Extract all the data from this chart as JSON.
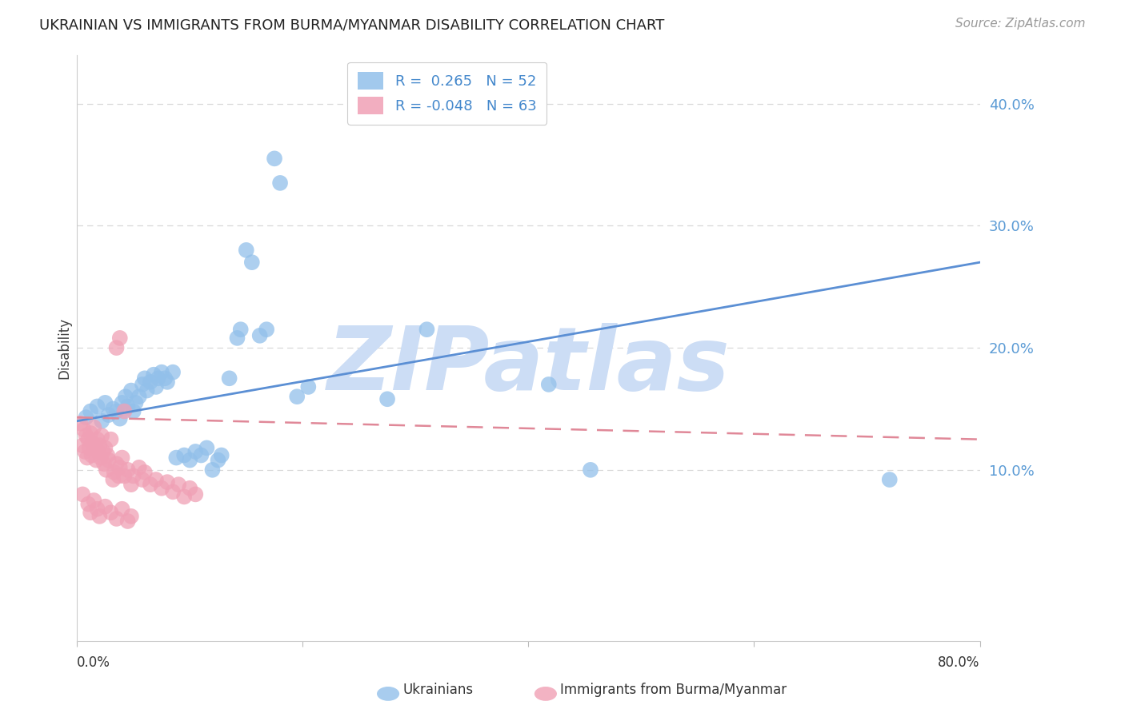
{
  "title": "UKRAINIAN VS IMMIGRANTS FROM BURMA/MYANMAR DISABILITY CORRELATION CHART",
  "source": "Source: ZipAtlas.com",
  "ylabel": "Disability",
  "watermark": "ZIPatlas",
  "xlim": [
    0.0,
    0.8
  ],
  "ylim": [
    -0.04,
    0.44
  ],
  "yticks": [
    0.1,
    0.2,
    0.3,
    0.4
  ],
  "ytick_labels": [
    "10.0%",
    "20.0%",
    "30.0%",
    "40.0%"
  ],
  "legend_labels": [
    "R =  0.265   N = 52",
    "R = -0.048   N = 63"
  ],
  "blue_color": "#92c0ea",
  "pink_color": "#f0a0b5",
  "blue_line_color": "#5b8fd4",
  "pink_line_color": "#e08898",
  "grid_color": "#d8d8d8",
  "title_color": "#222222",
  "source_color": "#999999",
  "watermark_color": "#ccddf5",
  "blue_scatter": [
    [
      0.008,
      0.143
    ],
    [
      0.012,
      0.148
    ],
    [
      0.018,
      0.152
    ],
    [
      0.022,
      0.14
    ],
    [
      0.025,
      0.155
    ],
    [
      0.028,
      0.145
    ],
    [
      0.032,
      0.15
    ],
    [
      0.035,
      0.148
    ],
    [
      0.038,
      0.142
    ],
    [
      0.04,
      0.155
    ],
    [
      0.043,
      0.16
    ],
    [
      0.045,
      0.152
    ],
    [
      0.048,
      0.165
    ],
    [
      0.05,
      0.148
    ],
    [
      0.052,
      0.155
    ],
    [
      0.055,
      0.16
    ],
    [
      0.058,
      0.17
    ],
    [
      0.06,
      0.175
    ],
    [
      0.062,
      0.165
    ],
    [
      0.065,
      0.172
    ],
    [
      0.068,
      0.178
    ],
    [
      0.07,
      0.168
    ],
    [
      0.072,
      0.175
    ],
    [
      0.075,
      0.18
    ],
    [
      0.078,
      0.175
    ],
    [
      0.08,
      0.172
    ],
    [
      0.085,
      0.18
    ],
    [
      0.088,
      0.11
    ],
    [
      0.095,
      0.112
    ],
    [
      0.1,
      0.108
    ],
    [
      0.105,
      0.115
    ],
    [
      0.11,
      0.112
    ],
    [
      0.115,
      0.118
    ],
    [
      0.12,
      0.1
    ],
    [
      0.125,
      0.108
    ],
    [
      0.128,
      0.112
    ],
    [
      0.135,
      0.175
    ],
    [
      0.142,
      0.208
    ],
    [
      0.145,
      0.215
    ],
    [
      0.15,
      0.28
    ],
    [
      0.155,
      0.27
    ],
    [
      0.162,
      0.21
    ],
    [
      0.168,
      0.215
    ],
    [
      0.175,
      0.355
    ],
    [
      0.18,
      0.335
    ],
    [
      0.195,
      0.16
    ],
    [
      0.205,
      0.168
    ],
    [
      0.275,
      0.158
    ],
    [
      0.31,
      0.215
    ],
    [
      0.418,
      0.17
    ],
    [
      0.455,
      0.1
    ],
    [
      0.72,
      0.092
    ]
  ],
  "pink_scatter": [
    [
      0.003,
      0.138
    ],
    [
      0.005,
      0.12
    ],
    [
      0.006,
      0.133
    ],
    [
      0.007,
      0.115
    ],
    [
      0.008,
      0.128
    ],
    [
      0.009,
      0.11
    ],
    [
      0.01,
      0.125
    ],
    [
      0.011,
      0.118
    ],
    [
      0.012,
      0.13
    ],
    [
      0.013,
      0.112
    ],
    [
      0.014,
      0.122
    ],
    [
      0.015,
      0.135
    ],
    [
      0.016,
      0.118
    ],
    [
      0.017,
      0.108
    ],
    [
      0.018,
      0.125
    ],
    [
      0.019,
      0.115
    ],
    [
      0.02,
      0.12
    ],
    [
      0.021,
      0.11
    ],
    [
      0.022,
      0.128
    ],
    [
      0.023,
      0.115
    ],
    [
      0.024,
      0.105
    ],
    [
      0.025,
      0.118
    ],
    [
      0.026,
      0.1
    ],
    [
      0.027,
      0.112
    ],
    [
      0.028,
      0.108
    ],
    [
      0.03,
      0.125
    ],
    [
      0.032,
      0.092
    ],
    [
      0.033,
      0.098
    ],
    [
      0.035,
      0.105
    ],
    [
      0.037,
      0.095
    ],
    [
      0.038,
      0.102
    ],
    [
      0.04,
      0.11
    ],
    [
      0.042,
      0.095
    ],
    [
      0.045,
      0.1
    ],
    [
      0.048,
      0.088
    ],
    [
      0.05,
      0.095
    ],
    [
      0.055,
      0.102
    ],
    [
      0.058,
      0.092
    ],
    [
      0.06,
      0.098
    ],
    [
      0.065,
      0.088
    ],
    [
      0.07,
      0.092
    ],
    [
      0.075,
      0.085
    ],
    [
      0.08,
      0.09
    ],
    [
      0.085,
      0.082
    ],
    [
      0.09,
      0.088
    ],
    [
      0.095,
      0.078
    ],
    [
      0.1,
      0.085
    ],
    [
      0.105,
      0.08
    ],
    [
      0.035,
      0.2
    ],
    [
      0.038,
      0.208
    ],
    [
      0.042,
      0.148
    ],
    [
      0.005,
      0.08
    ],
    [
      0.01,
      0.072
    ],
    [
      0.012,
      0.065
    ],
    [
      0.015,
      0.075
    ],
    [
      0.018,
      0.068
    ],
    [
      0.02,
      0.062
    ],
    [
      0.025,
      0.07
    ],
    [
      0.03,
      0.065
    ],
    [
      0.035,
      0.06
    ],
    [
      0.04,
      0.068
    ],
    [
      0.045,
      0.058
    ],
    [
      0.048,
      0.062
    ]
  ],
  "blue_trend_x": [
    0.0,
    0.8
  ],
  "blue_trend_y": [
    0.14,
    0.27
  ],
  "pink_trend_x": [
    0.0,
    0.8
  ],
  "pink_trend_y": [
    0.143,
    0.125
  ]
}
